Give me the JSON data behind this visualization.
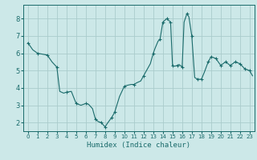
{
  "xlabel": "Humidex (Indice chaleur)",
  "bg_color": "#cce8e8",
  "grid_color": "#aacccc",
  "line_color": "#1a6b6b",
  "marker_color": "#1a6b6b",
  "xlim": [
    -0.5,
    23.5
  ],
  "ylim": [
    1.5,
    8.8
  ],
  "yticks": [
    2,
    3,
    4,
    5,
    6,
    7,
    8
  ],
  "xticks": [
    0,
    1,
    2,
    3,
    4,
    5,
    6,
    7,
    8,
    9,
    10,
    11,
    12,
    13,
    14,
    15,
    16,
    17,
    18,
    19,
    20,
    21,
    22,
    23
  ],
  "x": [
    0,
    0.5,
    1,
    1.5,
    2,
    2.5,
    3,
    3.3,
    3.7,
    4,
    4.5,
    5,
    5.5,
    6,
    6.3,
    6.7,
    7,
    7.3,
    7.6,
    8,
    8.3,
    8.7,
    9,
    9.5,
    10,
    10.3,
    10.7,
    11,
    11.3,
    11.7,
    12,
    12.3,
    12.7,
    13,
    13.2,
    13.5,
    13.7,
    14,
    14.2,
    14.4,
    14.6,
    14.8,
    15,
    15.2,
    15.5,
    15.7,
    16,
    16.2,
    16.5,
    16.7,
    17,
    17.3,
    17.6,
    18,
    18.3,
    18.7,
    19,
    19.5,
    20,
    20.5,
    21,
    21.5,
    22,
    22.5,
    23,
    23.3
  ],
  "y": [
    6.6,
    6.2,
    6.0,
    5.95,
    5.9,
    5.5,
    5.2,
    3.8,
    3.7,
    3.75,
    3.8,
    3.1,
    3.0,
    3.1,
    3.05,
    2.8,
    2.2,
    2.05,
    2.0,
    1.75,
    2.0,
    2.3,
    2.6,
    3.5,
    4.1,
    4.15,
    4.2,
    4.2,
    4.3,
    4.4,
    4.7,
    5.0,
    5.4,
    6.0,
    6.3,
    6.7,
    6.8,
    7.8,
    7.9,
    8.0,
    7.9,
    7.8,
    5.3,
    5.25,
    5.3,
    5.35,
    5.2,
    7.8,
    8.3,
    8.1,
    7.0,
    4.6,
    4.5,
    4.5,
    4.9,
    5.5,
    5.8,
    5.7,
    5.3,
    5.5,
    5.3,
    5.5,
    5.4,
    5.1,
    5.0,
    4.7
  ],
  "marker_x": [
    0,
    1,
    2,
    3,
    4,
    5,
    6,
    7,
    7.6,
    8,
    8.7,
    9,
    10,
    11,
    12,
    13,
    13.7,
    14,
    14.4,
    14.8,
    15,
    15.5,
    16,
    16.5,
    17,
    17.6,
    18,
    18.7,
    19,
    19.5,
    20,
    20.5,
    21,
    21.5,
    22,
    22.5,
    23
  ],
  "marker_y": [
    6.6,
    6.0,
    5.9,
    5.2,
    3.75,
    3.1,
    3.1,
    2.2,
    2.0,
    1.75,
    2.3,
    2.6,
    4.1,
    4.2,
    4.7,
    6.0,
    6.8,
    7.8,
    8.0,
    7.8,
    5.3,
    5.3,
    5.2,
    8.3,
    7.0,
    4.5,
    4.5,
    5.5,
    5.8,
    5.7,
    5.3,
    5.5,
    5.3,
    5.5,
    5.4,
    5.1,
    5.0
  ]
}
